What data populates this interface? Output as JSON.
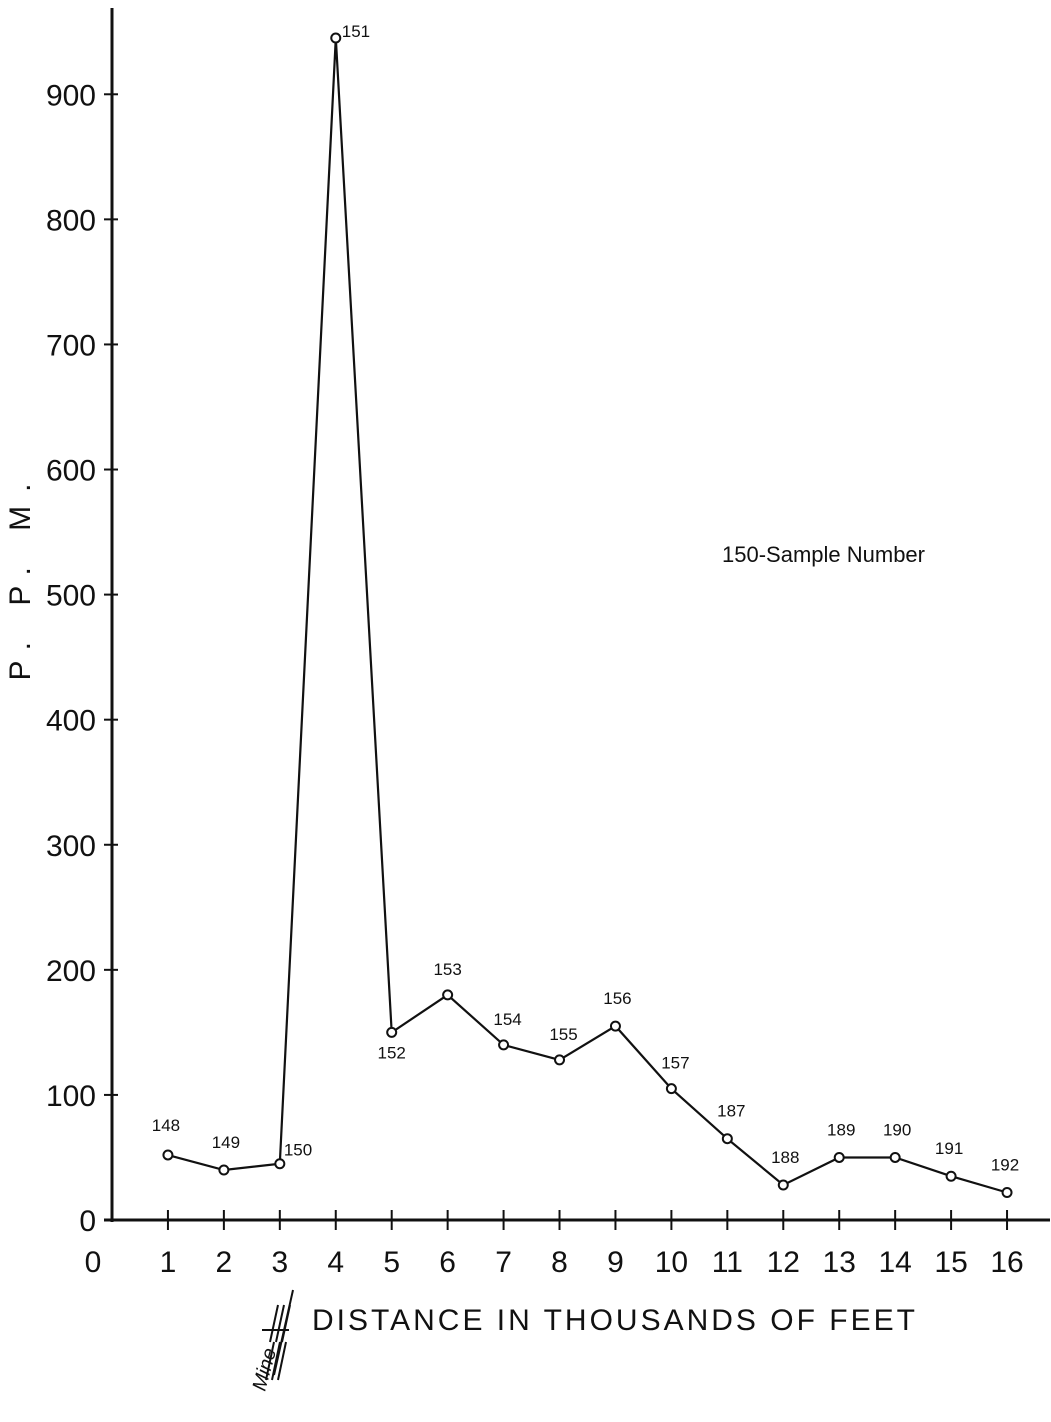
{
  "chart_data": {
    "type": "line",
    "title": "",
    "xlabel": "DISTANCE IN THOUSANDS OF FEET",
    "ylabel": "P. P. M.",
    "xlim": [
      0,
      16
    ],
    "ylim": [
      0,
      950
    ],
    "x_ticks": [
      0,
      1,
      2,
      3,
      4,
      5,
      6,
      7,
      8,
      9,
      10,
      11,
      12,
      13,
      14,
      15,
      16
    ],
    "y_ticks": [
      0,
      100,
      200,
      300,
      400,
      500,
      600,
      700,
      800,
      900
    ],
    "grid": false,
    "legend_note": "150-Sample Number",
    "annotation_mine": "Mine",
    "series": [
      {
        "points": [
          {
            "x": 1,
            "y": 52,
            "sample": "148"
          },
          {
            "x": 2,
            "y": 40,
            "sample": "149"
          },
          {
            "x": 3,
            "y": 45,
            "sample": "150"
          },
          {
            "x": 4,
            "y": 945,
            "sample": "151"
          },
          {
            "x": 5,
            "y": 150,
            "sample": "152"
          },
          {
            "x": 6,
            "y": 180,
            "sample": "153"
          },
          {
            "x": 7,
            "y": 140,
            "sample": "154"
          },
          {
            "x": 8,
            "y": 128,
            "sample": "155"
          },
          {
            "x": 9,
            "y": 155,
            "sample": "156"
          },
          {
            "x": 10,
            "y": 105,
            "sample": "157"
          },
          {
            "x": 11,
            "y": 65,
            "sample": "187"
          },
          {
            "x": 12,
            "y": 28,
            "sample": "188"
          },
          {
            "x": 13,
            "y": 50,
            "sample": "189"
          },
          {
            "x": 14,
            "y": 50,
            "sample": "190"
          },
          {
            "x": 15,
            "y": 35,
            "sample": "191"
          },
          {
            "x": 16,
            "y": 22,
            "sample": "192"
          }
        ]
      }
    ]
  },
  "colors": {
    "ink": "#111111",
    "background": "#ffffff"
  }
}
